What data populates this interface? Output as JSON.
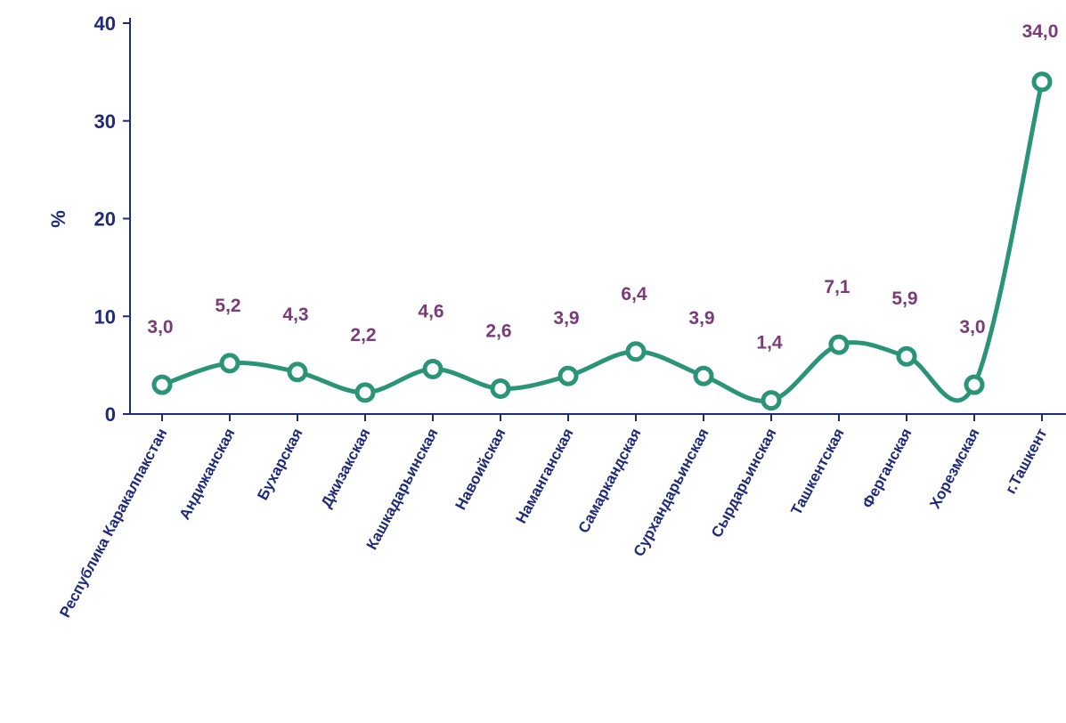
{
  "chart_data": {
    "type": "line",
    "ylabel": "%",
    "ylim": [
      0,
      40
    ],
    "yticks": [
      "0",
      "10",
      "20",
      "30",
      "40"
    ],
    "categories": [
      "Республика Каракалпакстан",
      "Андижанская",
      "Бухарская",
      "Джизакская",
      "Кашкадарьинская",
      "Навоийская",
      "Наманганская",
      "Самаркандская",
      "Сурхандарьинская",
      "Сырдарьинская",
      "Ташкентская",
      "Ферганская",
      "Хорезмская",
      "г.Ташкент"
    ],
    "values": [
      3.0,
      5.2,
      4.3,
      2.2,
      4.6,
      2.6,
      3.9,
      6.4,
      3.9,
      1.4,
      7.1,
      5.9,
      3.0,
      34.0
    ],
    "data_labels": [
      "3,0",
      "5,2",
      "4,3",
      "2,2",
      "4,6",
      "2,6",
      "3,9",
      "6,4",
      "3,9",
      "1,4",
      "7,1",
      "5,9",
      "3,0",
      "34,0"
    ],
    "grid": false,
    "legend": "none",
    "colors": {
      "line": "#2a9478",
      "axis": "#1f2a7a",
      "tick_text": "#1f2a7a",
      "data_label_text": "#7b3a78"
    }
  }
}
